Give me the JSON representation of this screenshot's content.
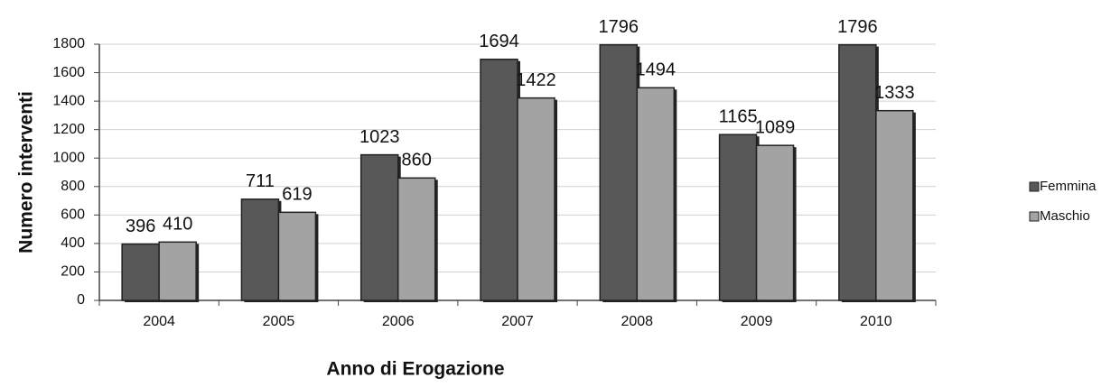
{
  "chart_data": {
    "type": "bar",
    "y_label": "Numero interventi",
    "x_label": "Anno di Erogazione",
    "categories": [
      "2004",
      "2005",
      "2006",
      "2007",
      "2008",
      "2009",
      "2010"
    ],
    "series": [
      {
        "name": "Femmina",
        "color": "#585858",
        "values": [
          396,
          711,
          1023,
          1694,
          1796,
          1165,
          1796
        ]
      },
      {
        "name": "Maschio",
        "color": "#a3a3a3",
        "values": [
          410,
          619,
          860,
          1422,
          1494,
          1089,
          1333
        ]
      }
    ],
    "ylim": [
      0,
      1800
    ],
    "yticks": [
      0,
      200,
      400,
      600,
      800,
      1000,
      1200,
      1400,
      1600,
      1800
    ],
    "grid": true,
    "legend": "right"
  }
}
